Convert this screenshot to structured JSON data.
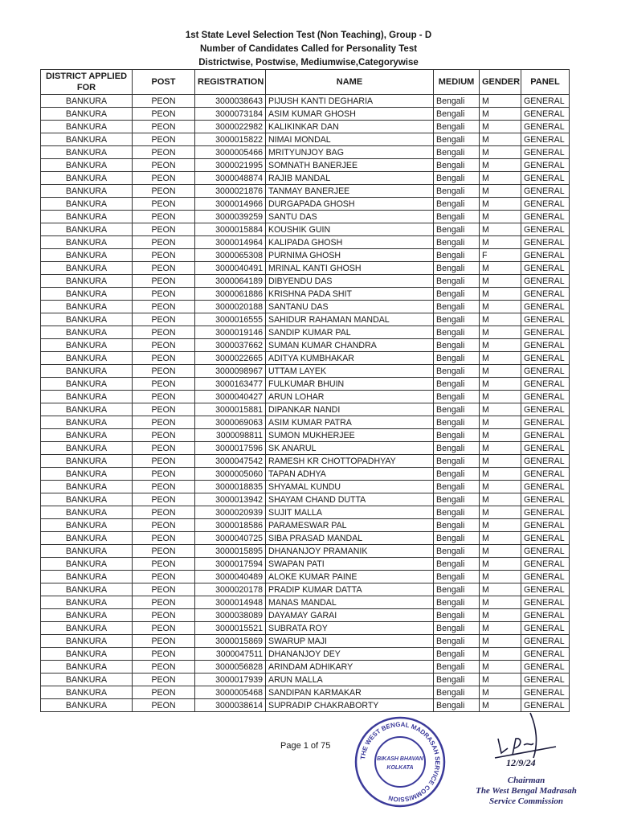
{
  "header": {
    "line1": "1st State Level Selection Test (Non Teaching), Group - D",
    "line2": "Number of Candidates Called for Personality Test",
    "line3": "Districtwise, Postwise, Mediumwise,Categorywise"
  },
  "table": {
    "columns": [
      "DISTRICT APPLIED FOR",
      "POST",
      "REGISTRATION",
      "NAME",
      "MEDIUM",
      "GENDER",
      "PANEL"
    ],
    "rows": [
      [
        "BANKURA",
        "PEON",
        "3000038643",
        "PIJUSH KANTI DEGHARIA",
        "Bengali",
        "M",
        "GENERAL"
      ],
      [
        "BANKURA",
        "PEON",
        "3000073184",
        "ASIM KUMAR GHOSH",
        "Bengali",
        "M",
        "GENERAL"
      ],
      [
        "BANKURA",
        "PEON",
        "3000022982",
        "KALIKINKAR DAN",
        "Bengali",
        "M",
        "GENERAL"
      ],
      [
        "BANKURA",
        "PEON",
        "3000015822",
        "NIMAI MONDAL",
        "Bengali",
        "M",
        "GENERAL"
      ],
      [
        "BANKURA",
        "PEON",
        "3000005466",
        "MRITYUNJOY BAG",
        "Bengali",
        "M",
        "GENERAL"
      ],
      [
        "BANKURA",
        "PEON",
        "3000021995",
        "SOMNATH BANERJEE",
        "Bengali",
        "M",
        "GENERAL"
      ],
      [
        "BANKURA",
        "PEON",
        "3000048874",
        "RAJIB MANDAL",
        "Bengali",
        "M",
        "GENERAL"
      ],
      [
        "BANKURA",
        "PEON",
        "3000021876",
        "TANMAY BANERJEE",
        "Bengali",
        "M",
        "GENERAL"
      ],
      [
        "BANKURA",
        "PEON",
        "3000014966",
        "DURGAPADA GHOSH",
        "Bengali",
        "M",
        "GENERAL"
      ],
      [
        "BANKURA",
        "PEON",
        "3000039259",
        "SANTU DAS",
        "Bengali",
        "M",
        "GENERAL"
      ],
      [
        "BANKURA",
        "PEON",
        "3000015884",
        "KOUSHIK GUIN",
        "Bengali",
        "M",
        "GENERAL"
      ],
      [
        "BANKURA",
        "PEON",
        "3000014964",
        "KALIPADA GHOSH",
        "Bengali",
        "M",
        "GENERAL"
      ],
      [
        "BANKURA",
        "PEON",
        "3000065308",
        "PURNIMA GHOSH",
        "Bengali",
        "F",
        "GENERAL"
      ],
      [
        "BANKURA",
        "PEON",
        "3000040491",
        "MRINAL KANTI GHOSH",
        "Bengali",
        "M",
        "GENERAL"
      ],
      [
        "BANKURA",
        "PEON",
        "3000064189",
        "DIBYENDU DAS",
        "Bengali",
        "M",
        "GENERAL"
      ],
      [
        "BANKURA",
        "PEON",
        "3000061886",
        "KRISHNA PADA SHIT",
        "Bengali",
        "M",
        "GENERAL"
      ],
      [
        "BANKURA",
        "PEON",
        "3000020188",
        "SANTANU DAS",
        "Bengali",
        "M",
        "GENERAL"
      ],
      [
        "BANKURA",
        "PEON",
        "3000016555",
        "SAHIDUR RAHAMAN MANDAL",
        "Bengali",
        "M",
        "GENERAL"
      ],
      [
        "BANKURA",
        "PEON",
        "3000019146",
        "SANDIP KUMAR PAL",
        "Bengali",
        "M",
        "GENERAL"
      ],
      [
        "BANKURA",
        "PEON",
        "3000037662",
        "SUMAN KUMAR CHANDRA",
        "Bengali",
        "M",
        "GENERAL"
      ],
      [
        "BANKURA",
        "PEON",
        "3000022665",
        "ADITYA  KUMBHAKAR",
        "Bengali",
        "M",
        "GENERAL"
      ],
      [
        "BANKURA",
        "PEON",
        "3000098967",
        "UTTAM LAYEK",
        "Bengali",
        "M",
        "GENERAL"
      ],
      [
        "BANKURA",
        "PEON",
        "3000163477",
        "FULKUMAR BHUIN",
        "Bengali",
        "M",
        "GENERAL"
      ],
      [
        "BANKURA",
        "PEON",
        "3000040427",
        "ARUN LOHAR",
        "Bengali",
        "M",
        "GENERAL"
      ],
      [
        "BANKURA",
        "PEON",
        "3000015881",
        "DIPANKAR NANDI",
        "Bengali",
        "M",
        "GENERAL"
      ],
      [
        "BANKURA",
        "PEON",
        "3000069063",
        "ASIM KUMAR PATRA",
        "Bengali",
        "M",
        "GENERAL"
      ],
      [
        "BANKURA",
        "PEON",
        "3000098811",
        "SUMON MUKHERJEE",
        "Bengali",
        "M",
        "GENERAL"
      ],
      [
        "BANKURA",
        "PEON",
        "3000017596",
        "SK ANARUL",
        "Bengali",
        "M",
        "GENERAL"
      ],
      [
        "BANKURA",
        "PEON",
        "3000047542",
        "RAMESH  KR  CHOTTOPADHYAY",
        "Bengali",
        "M",
        "GENERAL"
      ],
      [
        "BANKURA",
        "PEON",
        "3000005060",
        "TAPAN ADHYA",
        "Bengali",
        "M",
        "GENERAL"
      ],
      [
        "BANKURA",
        "PEON",
        "3000018835",
        "SHYAMAL KUNDU",
        "Bengali",
        "M",
        "GENERAL"
      ],
      [
        "BANKURA",
        "PEON",
        "3000013942",
        "SHAYAM CHAND DUTTA",
        "Bengali",
        "M",
        "GENERAL"
      ],
      [
        "BANKURA",
        "PEON",
        "3000020939",
        "SUJIT MALLA",
        "Bengali",
        "M",
        "GENERAL"
      ],
      [
        "BANKURA",
        "PEON",
        "3000018586",
        "PARAMESWAR PAL",
        "Bengali",
        "M",
        "GENERAL"
      ],
      [
        "BANKURA",
        "PEON",
        "3000040725",
        "SIBA PRASAD MANDAL",
        "Bengali",
        "M",
        "GENERAL"
      ],
      [
        "BANKURA",
        "PEON",
        "3000015895",
        "DHANANJOY PRAMANIK",
        "Bengali",
        "M",
        "GENERAL"
      ],
      [
        "BANKURA",
        "PEON",
        "3000017594",
        "SWAPAN PATI",
        "Bengali",
        "M",
        "GENERAL"
      ],
      [
        "BANKURA",
        "PEON",
        "3000040489",
        "ALOKE KUMAR PAINE",
        "Bengali",
        "M",
        "GENERAL"
      ],
      [
        "BANKURA",
        "PEON",
        "3000020178",
        "PRADIP KUMAR DATTA",
        "Bengali",
        "M",
        "GENERAL"
      ],
      [
        "BANKURA",
        "PEON",
        "3000014948",
        "MANAS MANDAL",
        "Bengali",
        "M",
        "GENERAL"
      ],
      [
        "BANKURA",
        "PEON",
        "3000038089",
        "DAYAMAY GARAI",
        "Bengali",
        "M",
        "GENERAL"
      ],
      [
        "BANKURA",
        "PEON",
        "3000015521",
        "SUBRATA ROY",
        "Bengali",
        "M",
        "GENERAL"
      ],
      [
        "BANKURA",
        "PEON",
        "3000015869",
        "SWARUP MAJI",
        "Bengali",
        "M",
        "GENERAL"
      ],
      [
        "BANKURA",
        "PEON",
        "3000047511",
        "DHANANJOY  DEY",
        "Bengali",
        "M",
        "GENERAL"
      ],
      [
        "BANKURA",
        "PEON",
        "3000056828",
        "ARINDAM ADHIKARY",
        "Bengali",
        "M",
        "GENERAL"
      ],
      [
        "BANKURA",
        "PEON",
        "3000017939",
        "ARUN MALLA",
        "Bengali",
        "M",
        "GENERAL"
      ],
      [
        "BANKURA",
        "PEON",
        "3000005468",
        "SANDIPAN KARMAKAR",
        "Bengali",
        "M",
        "GENERAL"
      ],
      [
        "BANKURA",
        "PEON",
        "3000038614",
        "SUPRADIP CHAKRABORTY",
        "Bengali",
        "M",
        "GENERAL"
      ]
    ]
  },
  "footer": {
    "page": "Page 1 of 75",
    "stamp_text": "THE WEST BENGAL MADRASAH SERVICE COMMISSION · BIKASH BHAVAN KOLKATA",
    "signature_date": "12/9/24",
    "signatory": [
      "Chairman",
      "The West Bengal Madrasah",
      "Service Commission"
    ],
    "stamp_color": "#3b3a9a"
  }
}
